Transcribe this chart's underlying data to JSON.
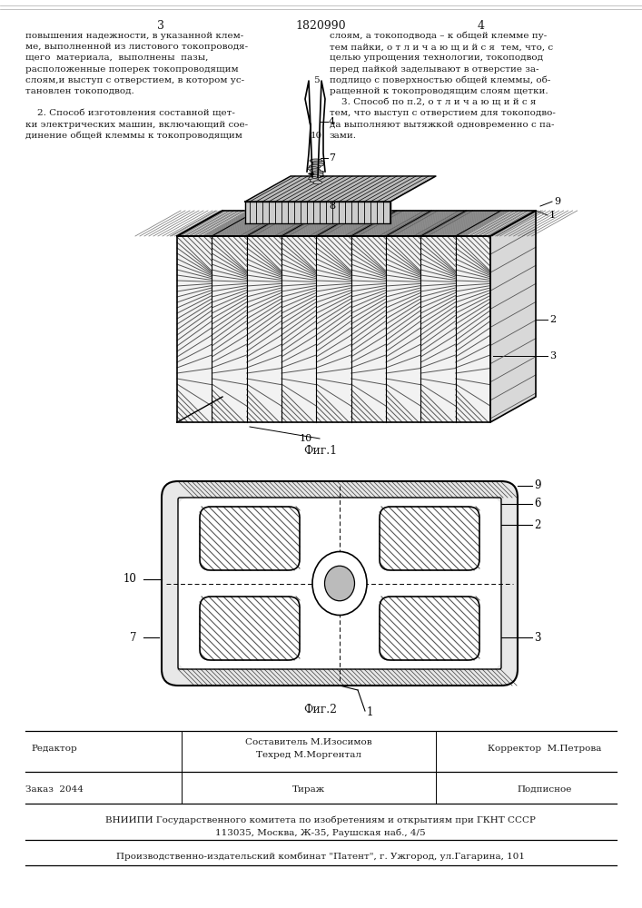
{
  "page_number_left": "3",
  "page_number_center": "1820990",
  "page_number_right": "4",
  "text_left_col": [
    "повышения надежности, в указанной клем-",
    "ме, выполненной из листового токопроводя-",
    "щего  материала,  выполнены  пазы,",
    "расположенные поперек токопроводящим",
    "слоям,и выступ с отверстием, в котором ус-",
    "тановлен токоподвод.",
    "",
    "    2. Способ изготовления составной щет-",
    "ки электрических машин, включающий сое-",
    "динение общей клеммы к токопроводящим"
  ],
  "text_right_col": [
    "слоям, а токоподвода – к общей клемме пу-",
    "тем пайки, о т л и ч а ю щ и й с я  тем, что, с",
    "целью упрощения технологии, токоподвод",
    "перед пайкой заделывают в отверстие за-",
    "подлицо с поверхностью общей клеммы, об-",
    "ращенной к токопроводящим слоям щетки.",
    "    3. Способ по п.2, о т л и ч а ю щ и й с я",
    "тем, что выступ с отверстием для токоподво-",
    "да выполняют вытяжкой одновременно с па-",
    "зами."
  ],
  "fig1_caption": "Фиг.1",
  "fig2_caption": "Фиг.2",
  "footer_editor": "Редактор",
  "footer_composer": "Составитель М.Изосимов",
  "footer_tech": "Техред М.Моргентал",
  "footer_corrector": "Корректор  М.Петрова",
  "footer_order": "Заказ  2044",
  "footer_tirazh": "Тираж",
  "footer_podpisnoe": "Подписное",
  "footer_vniiipi": "ВНИИПИ Государственного комитета по изобретениям и открытиям при ГКНТ СССР",
  "footer_address": "113035, Москва, Ж-35, Раушская наб., 4/5",
  "footer_factory": "Производственно-издательский комбинат \"Патент\", г. Ужгород, ул.Гагарина, 101",
  "bg_color": "#ffffff",
  "text_color": "#1a1a1a"
}
